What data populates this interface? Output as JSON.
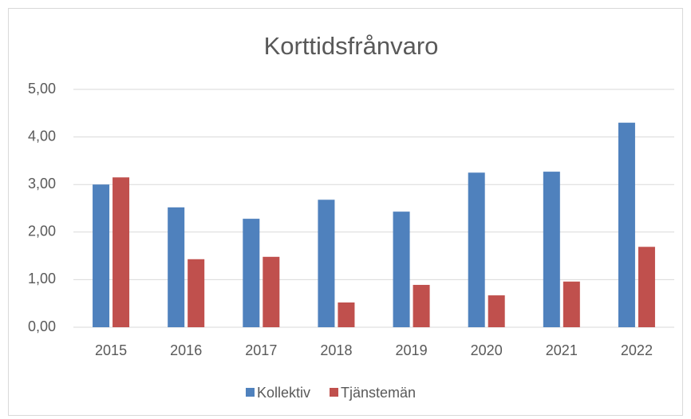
{
  "chart_data": {
    "type": "bar",
    "title": "Korttidsfrånvaro",
    "categories": [
      "2015",
      "2016",
      "2017",
      "2018",
      "2019",
      "2020",
      "2021",
      "2022"
    ],
    "series": [
      {
        "name": "Kollektiv",
        "color": "#4f81bd",
        "values": [
          3.0,
          2.52,
          2.28,
          2.68,
          2.43,
          3.25,
          3.27,
          4.3
        ]
      },
      {
        "name": "Tjänstemän",
        "color": "#c0504d",
        "values": [
          3.15,
          1.43,
          1.48,
          0.52,
          0.89,
          0.67,
          0.96,
          1.69
        ]
      }
    ],
    "ylim": [
      0,
      5
    ],
    "yticks": [
      {
        "value": 0,
        "label": "0,00"
      },
      {
        "value": 1,
        "label": "1,00"
      },
      {
        "value": 2,
        "label": "2,00"
      },
      {
        "value": 3,
        "label": "3,00"
      },
      {
        "value": 4,
        "label": "4,00"
      },
      {
        "value": 5,
        "label": "5,00"
      }
    ],
    "grid": true,
    "legend": "bottom"
  }
}
